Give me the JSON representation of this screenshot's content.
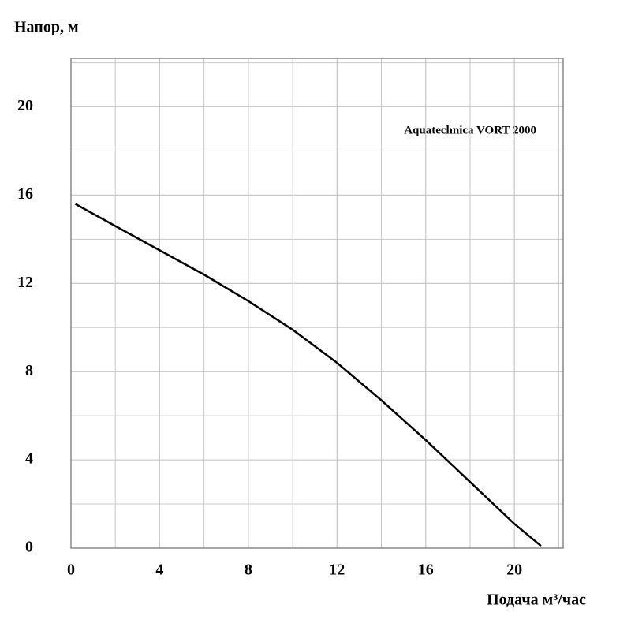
{
  "chart_data": {
    "type": "line",
    "y_label": "Напор, м",
    "x_label": "Подача  м³/час",
    "annotation": "Aquatechnica VORT 2000",
    "series": [
      {
        "color": "#000000",
        "x": [
          0.2,
          2,
          4,
          6,
          8,
          10,
          12,
          14,
          16,
          18,
          20,
          21.2
        ],
        "values": [
          15.6,
          14.6,
          13.5,
          12.4,
          11.2,
          9.9,
          8.4,
          6.7,
          4.9,
          3.0,
          1.1,
          0.1
        ]
      }
    ],
    "xlim": [
      0,
      22.2
    ],
    "ylim": [
      0,
      22.2
    ],
    "xticks": [
      0,
      4,
      8,
      12,
      16,
      20
    ],
    "yticks": [
      0,
      4,
      8,
      12,
      16,
      20
    ],
    "grid": true,
    "grid_step": 2
  }
}
